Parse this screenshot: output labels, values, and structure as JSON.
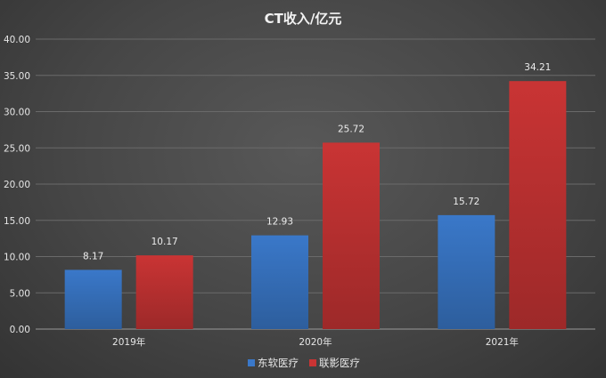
{
  "chart_data": {
    "type": "bar",
    "title": "CT收入/亿元",
    "categories": [
      "2019年",
      "2020年",
      "2021年"
    ],
    "series": [
      {
        "name": "东软医疗",
        "values": [
          8.17,
          12.93,
          15.72
        ],
        "color": "#3a78c9"
      },
      {
        "name": "联影医疗",
        "values": [
          10.17,
          25.72,
          34.21
        ],
        "color": "#c93434"
      }
    ],
    "y_ticks": [
      "0.00",
      "5.00",
      "10.00",
      "15.00",
      "20.00",
      "25.00",
      "30.00",
      "35.00",
      "40.00"
    ],
    "ylim": [
      0,
      40
    ],
    "xlabel": "",
    "ylabel": "",
    "grid": true,
    "legend_position": "bottom"
  }
}
